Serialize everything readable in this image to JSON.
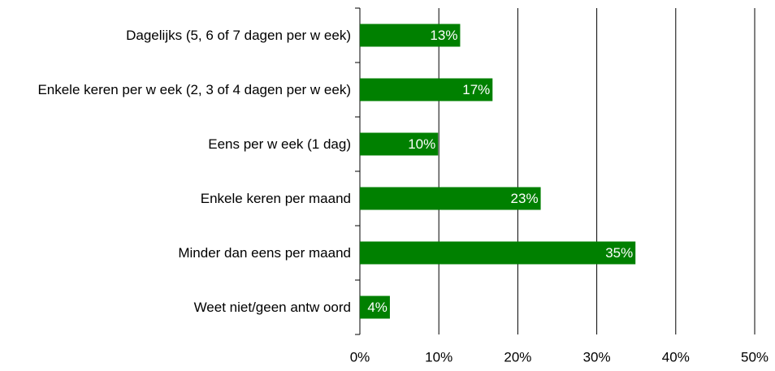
{
  "chart_data": {
    "type": "hbar",
    "categories": [
      "Dagelijks (5, 6 of 7 dagen per w eek)",
      "Enkele keren per w eek (2, 3 of 4 dagen per w eek)",
      "Eens per w eek (1 dag)",
      "Enkele keren per maand",
      "Minder dan eens per maand",
      "Weet niet/geen antw oord"
    ],
    "values": [
      12.7,
      16.8,
      9.9,
      22.9,
      34.9,
      3.8
    ],
    "value_labels": [
      "13%",
      "17%",
      "10%",
      "23%",
      "35%",
      "4%"
    ],
    "color": "#008000",
    "xlim": [
      0,
      50
    ],
    "xticks": [
      {
        "value": 0,
        "label": "0%"
      },
      {
        "value": 10,
        "label": "10%"
      },
      {
        "value": 20,
        "label": "20%"
      },
      {
        "value": 30,
        "label": "30%"
      },
      {
        "value": 40,
        "label": "40%"
      },
      {
        "value": 50,
        "label": "50%"
      }
    ],
    "grid": true
  }
}
